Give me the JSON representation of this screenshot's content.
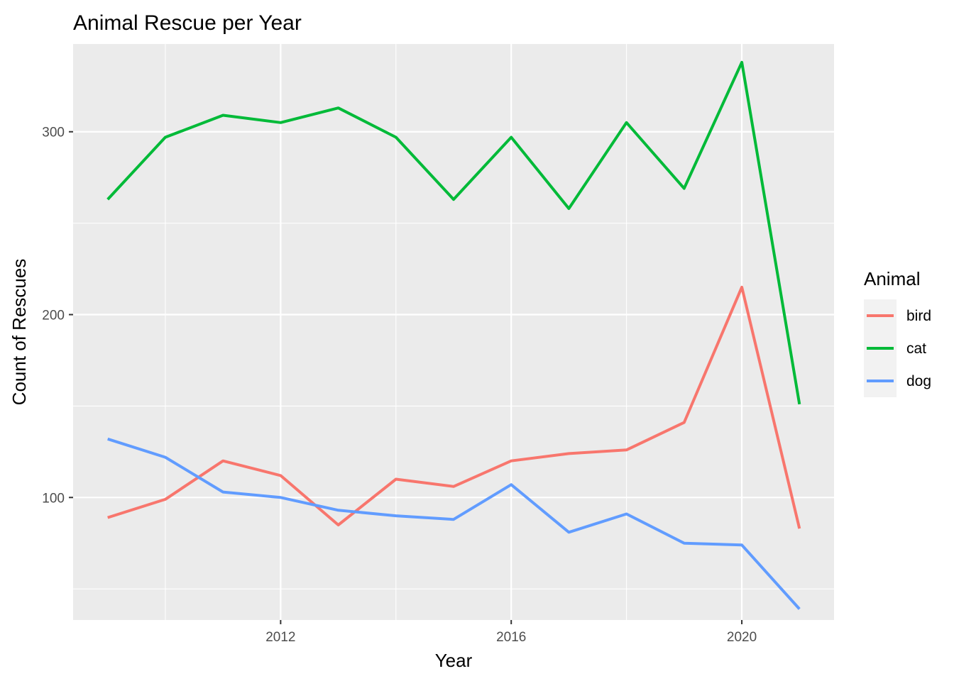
{
  "chart_data": {
    "type": "line",
    "title": "Animal Rescue per Year",
    "xlabel": "Year",
    "ylabel": "Count of Rescues",
    "x": [
      2009,
      2010,
      2011,
      2012,
      2013,
      2014,
      2015,
      2016,
      2017,
      2018,
      2019,
      2020,
      2021
    ],
    "xlim": [
      2008.4,
      2021.6
    ],
    "ylim": [
      33,
      348
    ],
    "x_ticks": [
      2012,
      2016,
      2020
    ],
    "x_tick_labels": [
      "2012",
      "2016",
      "2020"
    ],
    "y_ticks": [
      100,
      200,
      300
    ],
    "y_tick_labels": [
      "100",
      "200",
      "300"
    ],
    "grid": true,
    "legend": {
      "title": "Animal",
      "position": "right"
    },
    "series": [
      {
        "name": "bird",
        "color": "#F8766D",
        "values": [
          89,
          99,
          120,
          112,
          85,
          110,
          106,
          120,
          124,
          126,
          141,
          215,
          83
        ]
      },
      {
        "name": "cat",
        "color": "#00BA38",
        "values": [
          263,
          297,
          309,
          305,
          313,
          297,
          263,
          297,
          258,
          305,
          269,
          338,
          151
        ]
      },
      {
        "name": "dog",
        "color": "#619CFF",
        "values": [
          132,
          122,
          103,
          100,
          93,
          90,
          88,
          107,
          81,
          91,
          75,
          74,
          39
        ]
      }
    ]
  }
}
